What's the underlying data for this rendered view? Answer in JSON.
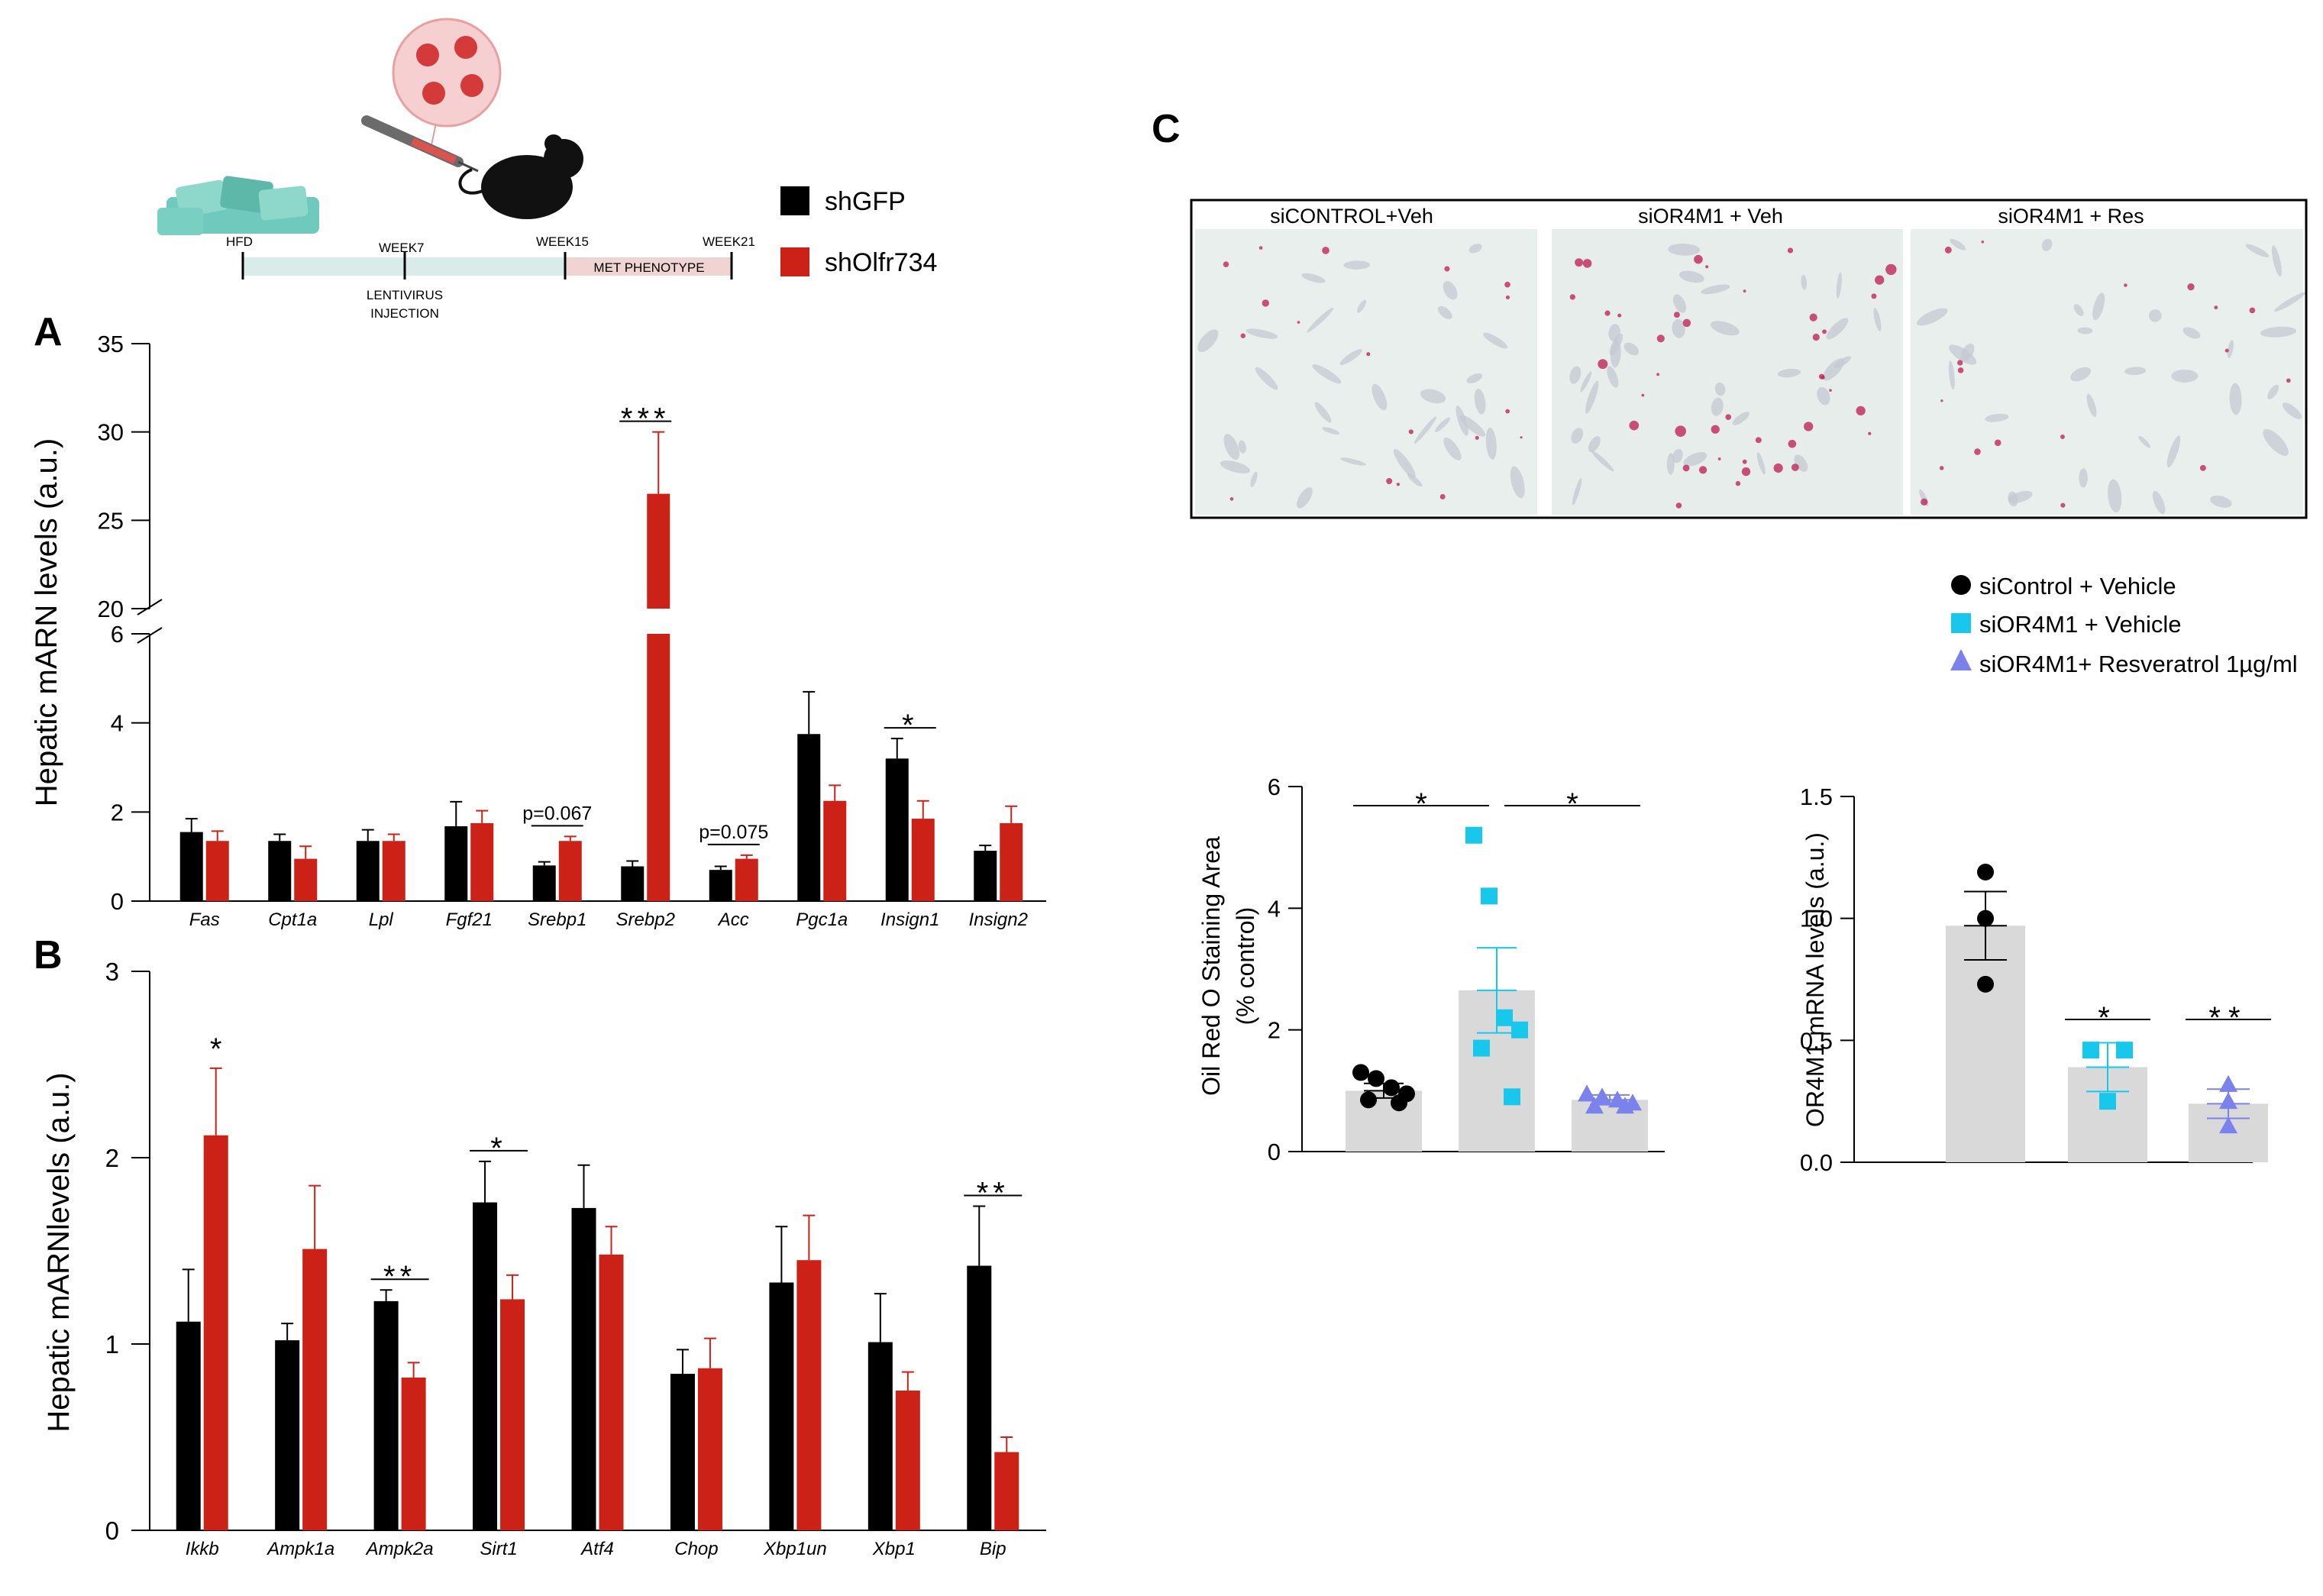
{
  "colors": {
    "control": "#000000",
    "knockdown": "#cc2116",
    "cyan": "#17c7ec",
    "violet": "#7b82ec",
    "grey_bar": "#d9d9d9",
    "timeline_hfd": "#d9ecea",
    "timeline_met": "#f0d4d3"
  },
  "panel_labels": {
    "a": "A",
    "b": "B",
    "c": "C"
  },
  "legend_ab": [
    {
      "label": "shGFP",
      "color": "#000000"
    },
    {
      "label": "shOlfr734",
      "color": "#cc2116"
    }
  ],
  "timeline": {
    "icons": [
      "food-pellets-icon",
      "mouse-icon",
      "syringe-icon",
      "virus-icon"
    ],
    "labels": {
      "hfd": "HFD",
      "week7": "WEEK7",
      "week15": "WEEK15",
      "week21": "WEEK21",
      "injection_line1": "LENTIVIRUS",
      "injection_line2": "INJECTION",
      "phase": "MET PHENOTYPE"
    }
  },
  "chart_data": [
    {
      "id": "panel-a",
      "type": "bar",
      "ylabel": "Hepatic mARN levels (a.u.)",
      "y_axis_break": [
        6,
        20
      ],
      "ylim": [
        0,
        35
      ],
      "yticks": [
        0,
        2,
        4,
        6,
        20,
        25,
        30,
        35
      ],
      "categories": [
        "Fas",
        "Cpt1a",
        "Lpl",
        "Fgf21",
        "Srebp1",
        "Srebp2",
        "Acc",
        "Pgc1a",
        "Insign1",
        "Insign2"
      ],
      "series": [
        {
          "name": "shGFP",
          "values": [
            1.55,
            1.35,
            1.35,
            1.68,
            0.8,
            0.78,
            0.7,
            3.75,
            3.2,
            1.13
          ],
          "errors": [
            0.3,
            0.15,
            0.25,
            0.55,
            0.08,
            0.12,
            0.08,
            0.95,
            0.45,
            0.12
          ]
        },
        {
          "name": "shOlfr734",
          "values": [
            1.35,
            0.95,
            1.35,
            1.75,
            1.35,
            26.5,
            0.95,
            2.25,
            1.85,
            1.75
          ],
          "errors": [
            0.22,
            0.28,
            0.15,
            0.28,
            0.1,
            3.5,
            0.08,
            0.35,
            0.4,
            0.38
          ]
        }
      ],
      "annotations": [
        {
          "category": "Srebp1",
          "text": "p=0.067"
        },
        {
          "category": "Srebp2",
          "text": "***"
        },
        {
          "category": "Acc",
          "text": "p=0.075"
        },
        {
          "category": "Insign1",
          "text": "*"
        }
      ]
    },
    {
      "id": "panel-b",
      "type": "bar",
      "ylabel": "Hepatic mARNlevels (a.u.)",
      "ylim": [
        0,
        3
      ],
      "yticks": [
        0,
        1,
        2,
        3
      ],
      "categories": [
        "Ikkb",
        "Ampk1a",
        "Ampk2a",
        "Sirt1",
        "Atf4",
        "Chop",
        "Xbp1un",
        "Xbp1",
        "Bip"
      ],
      "series": [
        {
          "name": "shGFP",
          "values": [
            1.12,
            1.02,
            1.23,
            1.76,
            1.73,
            0.84,
            1.33,
            1.01,
            1.42
          ],
          "errors": [
            0.28,
            0.09,
            0.06,
            0.22,
            0.23,
            0.13,
            0.3,
            0.26,
            0.32
          ]
        },
        {
          "name": "shOlfr734",
          "values": [
            2.12,
            1.51,
            0.82,
            1.24,
            1.48,
            0.87,
            1.45,
            0.75,
            0.42
          ],
          "errors": [
            0.36,
            0.34,
            0.08,
            0.13,
            0.15,
            0.16,
            0.24,
            0.1,
            0.08
          ]
        }
      ],
      "annotations": [
        {
          "category": "Ikkb",
          "text": "*"
        },
        {
          "category": "Ampk2a",
          "text": "**"
        },
        {
          "category": "Sirt1",
          "text": "*"
        },
        {
          "category": "Bip",
          "text": "**"
        }
      ]
    },
    {
      "id": "panel-c-oil-red",
      "type": "bar",
      "ylabel_lines": [
        "Oil Red O Staining  Area",
        "(% control)"
      ],
      "ylim": [
        0,
        6
      ],
      "yticks": [
        0,
        2,
        4,
        6
      ],
      "categories": [
        "siControl + Vehicle",
        "siOR4M1 + Vehicle",
        "siOR4M1+ Resveratrol 1µg/ml"
      ],
      "values": [
        1.0,
        2.65,
        0.85
      ],
      "errors": [
        0.12,
        0.7,
        0.08
      ],
      "points": [
        [
          1.3,
          1.2,
          1.05,
          0.95,
          0.85,
          0.8
        ],
        [
          5.2,
          4.2,
          2.2,
          2.0,
          1.7,
          0.9
        ],
        [
          0.95,
          0.9,
          0.85,
          0.8,
          0.75,
          0.75
        ]
      ],
      "comparisons": [
        {
          "from": 0,
          "to": 1,
          "text": "*"
        },
        {
          "from": 1,
          "to": 2,
          "text": "*"
        }
      ]
    },
    {
      "id": "panel-c-or4m1",
      "type": "bar",
      "ylabel": "OR4M1 mRNA levels (a.u.)",
      "ylim": [
        0,
        1.5
      ],
      "yticks": [
        "0.0",
        "0.5",
        "1.0",
        "1.5"
      ],
      "categories": [
        "siControl + Vehicle",
        "siOR4M1 + Vehicle",
        "siOR4M1+ Resveratrol 1µg/ml"
      ],
      "values": [
        0.97,
        0.39,
        0.24
      ],
      "errors": [
        0.14,
        0.1,
        0.06
      ],
      "points": [
        [
          1.19,
          1.0,
          0.73
        ],
        [
          0.46,
          0.46,
          0.25
        ],
        [
          0.32,
          0.25,
          0.15
        ]
      ],
      "annotations": [
        {
          "group": 1,
          "text": "*"
        },
        {
          "group": 2,
          "text": "**"
        }
      ]
    }
  ],
  "micrographs": [
    {
      "label": "siCONTROL+Veh",
      "stain": "low"
    },
    {
      "label": "siOR4M1 + Veh",
      "stain": "high"
    },
    {
      "label": "siOR4M1 + Res",
      "stain": "low"
    }
  ],
  "legend_c": [
    {
      "marker": "circle",
      "label": "siControl + Vehicle",
      "color": "#000000"
    },
    {
      "marker": "square",
      "label": "siOR4M1 + Vehicle",
      "color": "#17c7ec"
    },
    {
      "marker": "triangle",
      "label": "siOR4M1+ Resveratrol 1µg/ml",
      "color": "#7b82ec"
    }
  ]
}
